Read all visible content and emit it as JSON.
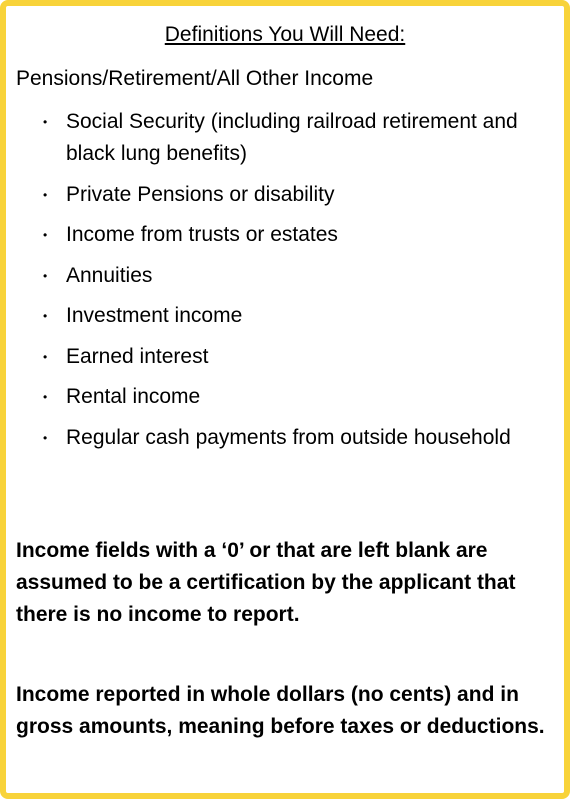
{
  "title": "Definitions You Will Need:",
  "section_heading": "Pensions/Retirement/All Other Income",
  "bullet_glyph": "•",
  "items": [
    {
      "label": "Social Security (including railroad retirement and black lung benefits)"
    },
    {
      "label": "Private Pensions or disability"
    },
    {
      "label": "Income from trusts or estates"
    },
    {
      "label": "Annuities"
    },
    {
      "label": "Investment income"
    },
    {
      "label": "Earned interest"
    },
    {
      "label": "Rental income"
    },
    {
      "label": "Regular cash payments from outside household"
    }
  ],
  "notes": [
    "Income fields with a ‘0’ or that are left blank are assumed to be a certification by the applicant that there is no income to report.",
    "Income reported in whole dollars (no cents) and in gross amounts, meaning before taxes or deductions."
  ],
  "colors": {
    "border": "#f8d33a",
    "background": "#ffffff",
    "text": "#000000"
  }
}
